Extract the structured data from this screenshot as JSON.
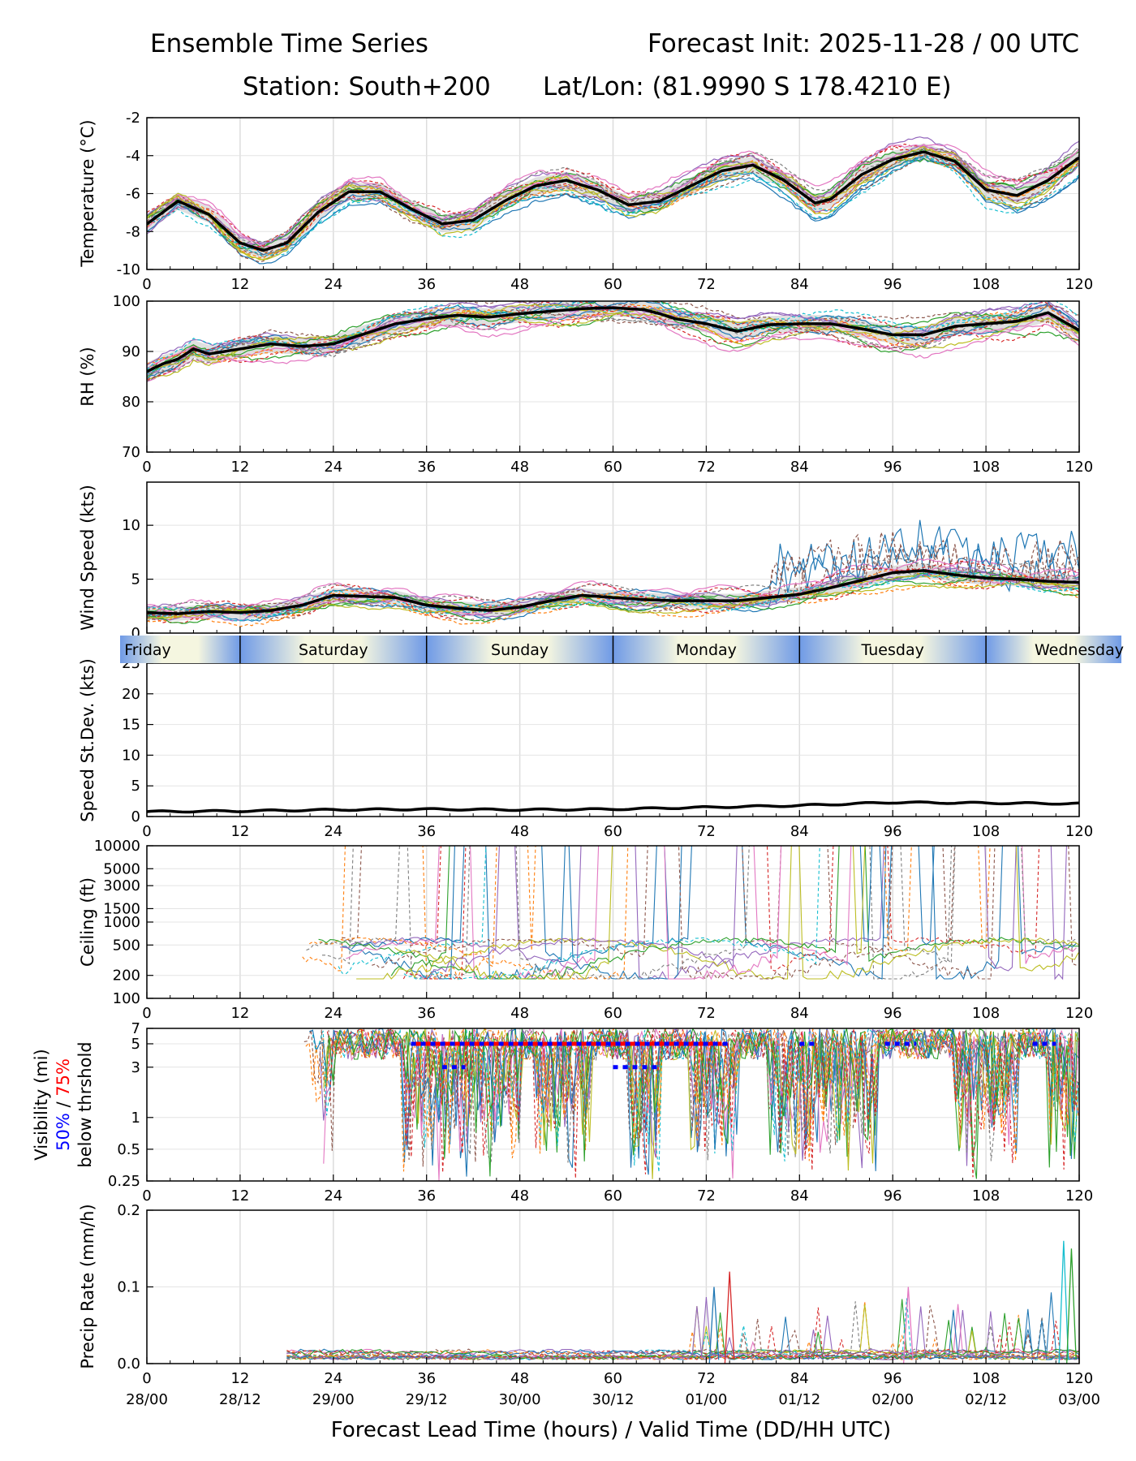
{
  "header": {
    "title_left": "Ensemble Time Series",
    "title_right": "Forecast Init: 2025-11-28 / 00 UTC",
    "station": "Station: South+200",
    "latlon": "Lat/Lon: (81.9990 S 178.4210 E)"
  },
  "x_axis": {
    "label": "Forecast Lead Time (hours) / Valid Time (DD/HH UTC)",
    "lead_ticks": [
      "0",
      "12",
      "24",
      "36",
      "48",
      "60",
      "72",
      "84",
      "96",
      "108",
      "120"
    ],
    "valid_ticks": [
      "28/00",
      "28/12",
      "29/00",
      "29/12",
      "30/00",
      "30/12",
      "01/00",
      "01/12",
      "02/00",
      "02/12",
      "03/00"
    ],
    "range": [
      0,
      120
    ]
  },
  "day_strip": [
    "Friday",
    "Saturday",
    "Sunday",
    "Monday",
    "Tuesday",
    "Wednesday"
  ],
  "visibility_label": {
    "line1": "Visibility (mi)",
    "pct50": "50%",
    "sep": " / ",
    "pct75": "75%",
    "line3": "below thrshold",
    "color50": "#0000ff",
    "color75": "#ff0000"
  },
  "ensemble_colors": [
    "#1f77b4",
    "#ff7f0e",
    "#2ca02c",
    "#d62728",
    "#9467bd",
    "#8c564b",
    "#e377c2",
    "#7f7f7f",
    "#bcbd22",
    "#17becf"
  ],
  "chart_data": [
    {
      "id": "temperature",
      "type": "line",
      "ylabel": "Temperature (°C)",
      "ylim": [
        -10,
        -2
      ],
      "yticks": [
        "-10",
        "-8",
        "-6",
        "-4",
        "-2"
      ],
      "mean": {
        "x": [
          0,
          4,
          8,
          12,
          15,
          18,
          22,
          26,
          30,
          34,
          38,
          42,
          46,
          50,
          54,
          58,
          62,
          66,
          70,
          74,
          78,
          82,
          86,
          88,
          92,
          96,
          100,
          104,
          108,
          112,
          116,
          120
        ],
        "y": [
          -7.6,
          -6.4,
          -7.1,
          -8.6,
          -9.0,
          -8.6,
          -7.0,
          -5.9,
          -5.9,
          -6.8,
          -7.6,
          -7.4,
          -6.4,
          -5.6,
          -5.3,
          -5.8,
          -6.6,
          -6.4,
          -5.6,
          -4.8,
          -4.5,
          -5.3,
          -6.5,
          -6.3,
          -5.0,
          -4.2,
          -3.8,
          -4.3,
          -5.8,
          -6.1,
          -5.3,
          -4.1
        ]
      },
      "spread": 0.9
    },
    {
      "id": "rh",
      "type": "line",
      "ylabel": "RH (%)",
      "ylim": [
        70,
        100
      ],
      "yticks": [
        "70",
        "80",
        "90",
        "100"
      ],
      "mean": {
        "x": [
          0,
          2,
          4,
          6,
          8,
          12,
          16,
          20,
          24,
          28,
          32,
          36,
          40,
          44,
          48,
          52,
          56,
          60,
          64,
          66,
          68,
          72,
          76,
          80,
          84,
          88,
          92,
          96,
          100,
          104,
          108,
          112,
          116,
          120
        ],
        "y": [
          86,
          87.5,
          88.5,
          90.5,
          89.5,
          90.5,
          91.5,
          91,
          91.5,
          93.5,
          95.5,
          96.5,
          97.2,
          96.8,
          97.5,
          98,
          98.5,
          98.7,
          98.3,
          97.5,
          96.5,
          95.5,
          94,
          95.3,
          95.5,
          95.5,
          94.5,
          93.3,
          93.3,
          95,
          95.5,
          96,
          97.7,
          94.2
        ]
      },
      "spread": 3.5
    },
    {
      "id": "wind",
      "type": "line",
      "ylabel": "Wind Speed (kts)",
      "ylim": [
        0,
        14
      ],
      "yticks": [
        "0",
        "5",
        "10"
      ],
      "mean": {
        "x": [
          0,
          4,
          8,
          12,
          16,
          20,
          24,
          28,
          32,
          36,
          40,
          44,
          48,
          52,
          56,
          60,
          64,
          68,
          72,
          76,
          80,
          84,
          88,
          92,
          96,
          100,
          104,
          108,
          112,
          116,
          120
        ],
        "y": [
          1.9,
          1.8,
          2.0,
          1.9,
          2.1,
          2.6,
          3.5,
          3.4,
          3.3,
          2.6,
          2.3,
          2.1,
          2.4,
          3.0,
          3.5,
          3.3,
          3.1,
          3.0,
          3.0,
          3.0,
          3.3,
          3.6,
          4.2,
          4.9,
          5.6,
          5.8,
          5.4,
          5.1,
          5.0,
          4.8,
          4.7
        ]
      },
      "spread": 1.3
    },
    {
      "id": "speed_stdev",
      "type": "line",
      "ylabel": "Speed St.Dev. (kts)",
      "ylim": [
        0,
        25
      ],
      "yticks": [
        "0",
        "5",
        "10",
        "15",
        "20",
        "25"
      ],
      "mean": {
        "x": [
          0,
          12,
          24,
          36,
          48,
          60,
          72,
          84,
          96,
          108,
          120
        ],
        "y": [
          0.8,
          0.9,
          1.1,
          1.2,
          1.1,
          1.2,
          1.5,
          1.8,
          2.3,
          2.2,
          2.1
        ]
      }
    },
    {
      "id": "ceiling",
      "type": "line",
      "ylabel": "Ceiling (ft)",
      "scale": "log",
      "ylim": [
        100,
        10000
      ],
      "yticks": [
        "100",
        "200",
        "500",
        "1000",
        "1500",
        "3000",
        "5000",
        "10000"
      ],
      "typical_low": 600
    },
    {
      "id": "visibility",
      "type": "line",
      "scale": "log",
      "ylim": [
        0.25,
        7
      ],
      "yticks": [
        "0.25",
        "0.5",
        "1",
        "3",
        "5",
        "7"
      ],
      "threshold75": {
        "y": 5,
        "from": 34,
        "to": 74
      },
      "threshold50": [
        {
          "y": 5,
          "from": 34,
          "to": 75
        },
        {
          "y": 3,
          "from": 38,
          "to": 41
        },
        {
          "y": 3,
          "from": 60,
          "to": 66
        },
        {
          "y": 5,
          "from": 84,
          "to": 86
        },
        {
          "y": 5,
          "from": 95,
          "to": 99
        },
        {
          "y": 5,
          "from": 114,
          "to": 117
        }
      ]
    },
    {
      "id": "precip",
      "type": "line",
      "ylabel": "Precip Rate (mm/h)",
      "ylim": [
        0.0,
        0.2
      ],
      "yticks": [
        "0.0",
        "0.1",
        "0.2"
      ],
      "peaks": [
        {
          "x": 73,
          "y": 0.1
        },
        {
          "x": 75,
          "y": 0.12
        },
        {
          "x": 98,
          "y": 0.1
        },
        {
          "x": 118,
          "y": 0.16
        },
        {
          "x": 119,
          "y": 0.15
        }
      ]
    }
  ]
}
